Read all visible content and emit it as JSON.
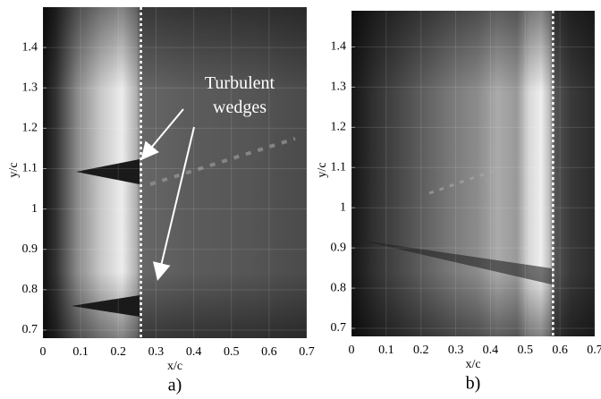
{
  "chart_data": [
    {
      "type": "image",
      "panel_label": "a)",
      "x_label": "x/c",
      "y_label": "y/c",
      "xlim": [
        0,
        0.7
      ],
      "ylim": [
        0.68,
        1.5
      ],
      "xticks": [
        0,
        0.1,
        0.2,
        0.3,
        0.4,
        0.5,
        0.6,
        0.7
      ],
      "yticks": [
        0.7,
        0.8,
        0.9,
        1,
        1.1,
        1.2,
        1.3,
        1.4
      ],
      "grid": true,
      "dashed_line_x": 0.26,
      "annotation": "Turbulent wedges"
    },
    {
      "type": "image",
      "panel_label": "b)",
      "x_label": "x/c",
      "y_label": "y/c",
      "xlim": [
        0,
        0.7
      ],
      "ylim": [
        0.68,
        1.49
      ],
      "xticks": [
        0,
        0.1,
        0.2,
        0.3,
        0.4,
        0.5,
        0.6,
        0.7
      ],
      "yticks": [
        0.7,
        0.8,
        0.9,
        1,
        1.1,
        1.2,
        1.3,
        1.4
      ],
      "grid": true,
      "dashed_line_x": 0.58
    }
  ]
}
